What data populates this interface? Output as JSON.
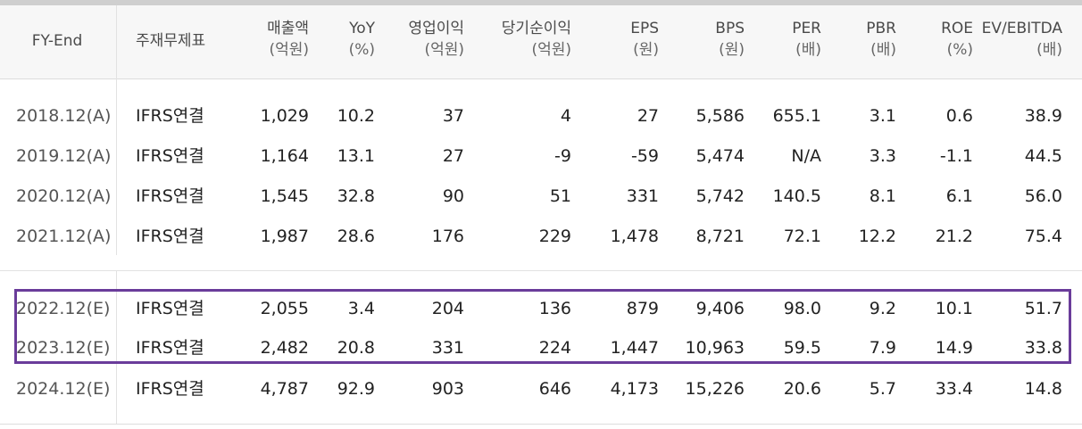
{
  "table": {
    "headers": [
      {
        "main": "FY-End",
        "sub": ""
      },
      {
        "main": "주재무제표",
        "sub": ""
      },
      {
        "main": "매출액",
        "sub": "(억원)"
      },
      {
        "main": "YoY",
        "sub": "(%)"
      },
      {
        "main": "영업이익",
        "sub": "(억원)"
      },
      {
        "main": "당기순이익",
        "sub": "(억원)"
      },
      {
        "main": "EPS",
        "sub": "(원)"
      },
      {
        "main": "BPS",
        "sub": "(원)"
      },
      {
        "main": "PER",
        "sub": "(배)"
      },
      {
        "main": "PBR",
        "sub": "(배)"
      },
      {
        "main": "ROE",
        "sub": "(%)"
      },
      {
        "main": "EV/EBITDA",
        "sub": "(배)"
      }
    ],
    "rows": [
      [
        "2018.12(A)",
        "IFRS연결",
        "1,029",
        "10.2",
        "37",
        "4",
        "27",
        "5,586",
        "655.1",
        "3.1",
        "0.6",
        "38.9"
      ],
      [
        "2019.12(A)",
        "IFRS연결",
        "1,164",
        "13.1",
        "27",
        "-9",
        "-59",
        "5,474",
        "N/A",
        "3.3",
        "-1.1",
        "44.5"
      ],
      [
        "2020.12(A)",
        "IFRS연결",
        "1,545",
        "32.8",
        "90",
        "51",
        "331",
        "5,742",
        "140.5",
        "8.1",
        "6.1",
        "56.0"
      ],
      [
        "2021.12(A)",
        "IFRS연결",
        "1,987",
        "28.6",
        "176",
        "229",
        "1,478",
        "8,721",
        "72.1",
        "12.2",
        "21.2",
        "75.4"
      ],
      [
        "2022.12(E)",
        "IFRS연결",
        "2,055",
        "3.4",
        "204",
        "136",
        "879",
        "9,406",
        "98.0",
        "9.2",
        "10.1",
        "51.7"
      ],
      [
        "2023.12(E)",
        "IFRS연결",
        "2,482",
        "20.8",
        "331",
        "224",
        "1,447",
        "10,963",
        "59.5",
        "7.9",
        "14.9",
        "33.8"
      ],
      [
        "2024.12(E)",
        "IFRS연결",
        "4,787",
        "92.9",
        "903",
        "646",
        "4,173",
        "15,226",
        "20.6",
        "5.7",
        "33.4",
        "14.8"
      ]
    ]
  },
  "colors": {
    "highlight_border": "#6a3c9a",
    "header_bg": "#f7f7f7"
  }
}
